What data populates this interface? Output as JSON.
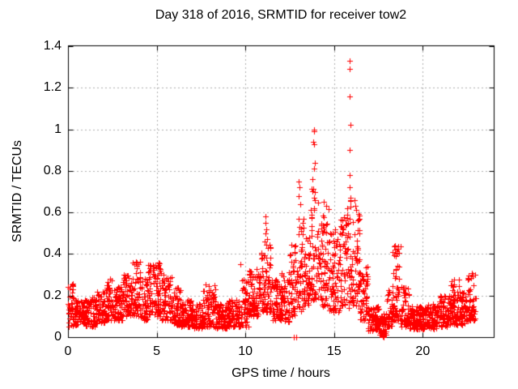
{
  "chart_data": {
    "type": "scatter",
    "title": "Day 318 of 2016, SRMTID for receiver tow2",
    "xlabel": "GPS time / hours",
    "ylabel": "SRMTID / TECUs",
    "xlim": [
      0,
      24
    ],
    "ylim": [
      0,
      1.4
    ],
    "xticks": [
      0,
      5,
      10,
      15,
      20
    ],
    "yticks": [
      0,
      0.2,
      0.4,
      0.6,
      0.8,
      1,
      1.2,
      1.4
    ],
    "grid": true,
    "legend": "none",
    "marker": "plus",
    "marker_size_px": 7,
    "colors": {
      "marker": "#ff0000",
      "grid": "#b0b0b0",
      "frame": "#000000",
      "text": "#000000",
      "background": "#ffffff"
    },
    "sampling": {
      "points_per_hour": 120,
      "seed": 318,
      "data_start_hour": 0.0,
      "data_end_hour": 23.0
    },
    "band_bins": [
      [
        0.0,
        0.3,
        0.05,
        0.26
      ],
      [
        0.3,
        1.0,
        0.06,
        0.18
      ],
      [
        1.0,
        1.6,
        0.05,
        0.2
      ],
      [
        1.6,
        2.1,
        0.07,
        0.22
      ],
      [
        2.1,
        2.6,
        0.08,
        0.28
      ],
      [
        2.6,
        3.1,
        0.08,
        0.25
      ],
      [
        3.1,
        3.5,
        0.1,
        0.3
      ],
      [
        3.5,
        4.1,
        0.1,
        0.37
      ],
      [
        4.1,
        4.5,
        0.08,
        0.28
      ],
      [
        4.5,
        5.3,
        0.1,
        0.36
      ],
      [
        5.3,
        5.9,
        0.08,
        0.3
      ],
      [
        5.9,
        6.4,
        0.06,
        0.24
      ],
      [
        6.4,
        7.0,
        0.05,
        0.18
      ],
      [
        7.0,
        7.6,
        0.04,
        0.16
      ],
      [
        7.6,
        8.3,
        0.05,
        0.26
      ],
      [
        8.3,
        9.0,
        0.04,
        0.16
      ],
      [
        9.0,
        9.8,
        0.05,
        0.18
      ],
      [
        9.8,
        10.2,
        0.05,
        0.28
      ],
      [
        10.2,
        10.9,
        0.1,
        0.33
      ],
      [
        10.9,
        11.45,
        0.12,
        0.45
      ],
      [
        11.45,
        12.05,
        0.08,
        0.28
      ],
      [
        12.05,
        12.5,
        0.07,
        0.32
      ],
      [
        12.5,
        12.95,
        0.1,
        0.45
      ],
      [
        12.95,
        13.3,
        0.12,
        0.6
      ],
      [
        13.3,
        13.7,
        0.15,
        0.48
      ],
      [
        13.7,
        14.15,
        0.18,
        0.72
      ],
      [
        14.15,
        14.75,
        0.15,
        0.62
      ],
      [
        14.75,
        15.35,
        0.12,
        0.52
      ],
      [
        15.35,
        15.75,
        0.15,
        0.58
      ],
      [
        15.75,
        16.05,
        0.12,
        0.68
      ],
      [
        16.05,
        16.45,
        0.15,
        0.62
      ],
      [
        16.45,
        16.9,
        0.08,
        0.35
      ],
      [
        16.9,
        17.55,
        0.03,
        0.15
      ],
      [
        17.55,
        17.95,
        0.01,
        0.12
      ],
      [
        17.95,
        18.3,
        0.05,
        0.25
      ],
      [
        18.3,
        18.75,
        0.08,
        0.44
      ],
      [
        18.75,
        19.2,
        0.05,
        0.25
      ],
      [
        19.2,
        20.1,
        0.04,
        0.15
      ],
      [
        20.1,
        20.9,
        0.04,
        0.16
      ],
      [
        20.9,
        21.6,
        0.05,
        0.2
      ],
      [
        21.6,
        22.1,
        0.06,
        0.28
      ],
      [
        22.1,
        22.55,
        0.06,
        0.22
      ],
      [
        22.55,
        23.0,
        0.08,
        0.31
      ]
    ],
    "peak_points": [
      [
        9.7,
        0.35
      ],
      [
        11.12,
        0.58
      ],
      [
        11.15,
        0.55
      ],
      [
        11.18,
        0.52
      ],
      [
        11.14,
        0.5
      ],
      [
        11.22,
        0.47
      ],
      [
        11.1,
        0.46
      ],
      [
        12.72,
        0.0
      ],
      [
        12.85,
        0.0
      ],
      [
        13.02,
        0.75
      ],
      [
        13.05,
        0.72
      ],
      [
        13.0,
        0.68
      ],
      [
        13.08,
        0.64
      ],
      [
        13.85,
        1.0
      ],
      [
        13.88,
        0.99
      ],
      [
        13.83,
        0.94
      ],
      [
        13.86,
        0.93
      ],
      [
        13.9,
        0.84
      ],
      [
        13.88,
        0.81
      ],
      [
        13.8,
        0.76
      ],
      [
        13.92,
        0.7
      ],
      [
        14.4,
        0.65
      ],
      [
        14.55,
        0.63
      ],
      [
        15.88,
        1.33
      ],
      [
        15.9,
        1.29
      ],
      [
        15.89,
        1.16
      ],
      [
        15.92,
        1.02
      ],
      [
        15.9,
        0.9
      ],
      [
        15.86,
        0.78
      ],
      [
        15.88,
        0.72
      ],
      [
        15.94,
        0.66
      ],
      [
        16.15,
        0.66
      ],
      [
        16.2,
        0.63
      ],
      [
        17.74,
        0.005
      ],
      [
        17.75,
        0.012
      ],
      [
        17.76,
        0.003
      ],
      [
        17.76,
        0.016
      ],
      [
        17.77,
        0.008
      ],
      [
        17.78,
        0.001
      ],
      [
        17.78,
        0.014
      ],
      [
        17.79,
        0.006
      ],
      [
        17.8,
        0.012
      ],
      [
        17.81,
        0.004
      ],
      [
        17.76,
        0.01
      ],
      [
        17.79,
        0.016
      ],
      [
        18.42,
        0.44
      ],
      [
        18.45,
        0.42
      ],
      [
        18.5,
        0.4
      ],
      [
        22.78,
        0.31
      ],
      [
        22.83,
        0.3
      ]
    ]
  }
}
